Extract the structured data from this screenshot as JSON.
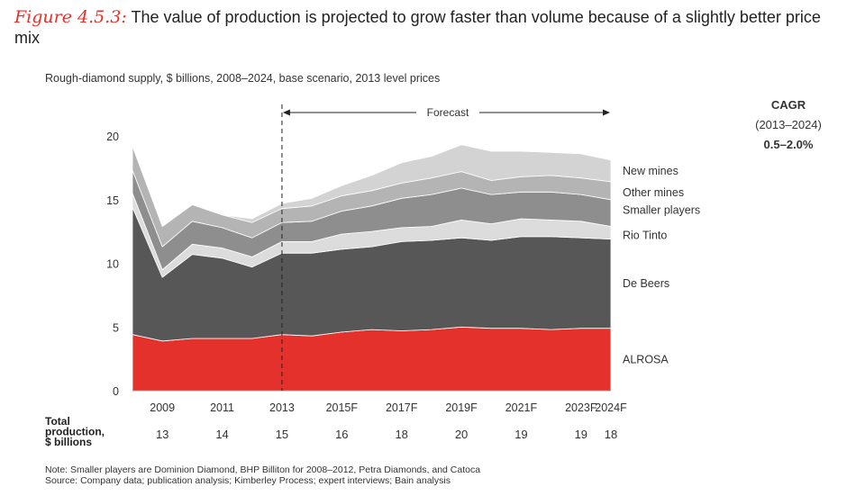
{
  "title": {
    "label": "Figure 4.5.3:",
    "text": "The value of production is projected to grow faster than volume because of a slightly better price mix"
  },
  "subtitle": "Rough-diamond supply, $ billions, 2008–2024, base scenario, 2013 level prices",
  "cagr": {
    "heading": "CAGR",
    "period": "(2013–2024)",
    "value": "0.5–2.0%"
  },
  "forecast_label": "Forecast",
  "total_production": {
    "label_lines": [
      "Total",
      "production,",
      "$ billions"
    ]
  },
  "notes": {
    "note": "Note:  Smaller players are Dominion Diamond, BHP Billiton for 2008–2012, Petra Diamonds, and Catoca",
    "source": "Source:  Company data; publication analysis; Kimberley Process; expert interviews; Bain analysis"
  },
  "colors": {
    "alrosa": "#e4312b",
    "de_beers": "#575757",
    "rio_tinto": "#dcdcdc",
    "smaller_players": "#8e8e8e",
    "other_mines": "#b4b4b4",
    "new_mines": "#d3d3d3"
  },
  "chart_data": {
    "type": "area",
    "stacked": true,
    "title": "Rough-diamond supply, $ billions, 2008–2024, base scenario, 2013 level prices",
    "x": [
      2008,
      2009,
      2010,
      2011,
      2012,
      2013,
      2014,
      2015,
      2016,
      2017,
      2018,
      2019,
      2020,
      2021,
      2022,
      2023,
      2024
    ],
    "x_tick_labels": [
      {
        "x": 2009,
        "label": "2009"
      },
      {
        "x": 2011,
        "label": "2011"
      },
      {
        "x": 2013,
        "label": "2013"
      },
      {
        "x": 2015,
        "label": "2015F"
      },
      {
        "x": 2017,
        "label": "2017F"
      },
      {
        "x": 2019,
        "label": "2019F"
      },
      {
        "x": 2021,
        "label": "2021F"
      },
      {
        "x": 2023,
        "label": "2023F"
      },
      {
        "x": 2024,
        "label": "2024F"
      }
    ],
    "ylim": [
      0,
      20
    ],
    "y_ticks": [
      0,
      5,
      10,
      15,
      20
    ],
    "forecast_start": 2013,
    "series": [
      {
        "name": "ALROSA",
        "color_key": "alrosa",
        "values": [
          4.4,
          3.9,
          4.1,
          4.1,
          4.1,
          4.4,
          4.3,
          4.6,
          4.8,
          4.7,
          4.8,
          5.0,
          4.9,
          4.9,
          4.8,
          4.9,
          4.9
        ]
      },
      {
        "name": "De Beers",
        "color_key": "de_beers",
        "values": [
          10.0,
          5.0,
          6.6,
          6.3,
          5.6,
          6.4,
          6.5,
          6.5,
          6.5,
          7.0,
          7.0,
          7.0,
          6.9,
          7.2,
          7.3,
          7.1,
          7.0
        ]
      },
      {
        "name": "Rio Tinto",
        "color_key": "rio_tinto",
        "values": [
          1.1,
          0.6,
          0.8,
          0.8,
          0.8,
          0.9,
          0.9,
          1.2,
          1.2,
          1.1,
          1.1,
          1.4,
          1.3,
          1.4,
          1.3,
          1.3,
          1.0
        ]
      },
      {
        "name": "Smaller players",
        "color_key": "smaller_players",
        "values": [
          1.8,
          1.8,
          1.8,
          1.6,
          1.5,
          1.5,
          1.6,
          1.8,
          2.0,
          2.3,
          2.5,
          2.5,
          2.3,
          2.1,
          2.2,
          2.1,
          2.1
        ]
      },
      {
        "name": "Other mines",
        "color_key": "other_mines",
        "values": [
          1.9,
          1.6,
          1.3,
          1.0,
          1.2,
          1.1,
          1.2,
          1.2,
          1.2,
          1.2,
          1.3,
          1.3,
          1.1,
          1.2,
          1.3,
          1.3,
          1.4
        ]
      },
      {
        "name": "New mines",
        "color_key": "new_mines",
        "values": [
          0,
          0,
          0,
          0,
          0.3,
          0.4,
          0.6,
          0.8,
          1.2,
          1.6,
          1.7,
          2.1,
          2.3,
          2.0,
          1.8,
          1.9,
          1.7
        ]
      }
    ],
    "total_production": [
      {
        "x": 2009,
        "value": "13"
      },
      {
        "x": 2011,
        "value": "14"
      },
      {
        "x": 2013,
        "value": "15"
      },
      {
        "x": 2015,
        "value": "16"
      },
      {
        "x": 2017,
        "value": "18"
      },
      {
        "x": 2019,
        "value": "20"
      },
      {
        "x": 2021,
        "value": "19"
      },
      {
        "x": 2023,
        "value": "19"
      },
      {
        "x": 2024,
        "value": "18"
      }
    ]
  }
}
